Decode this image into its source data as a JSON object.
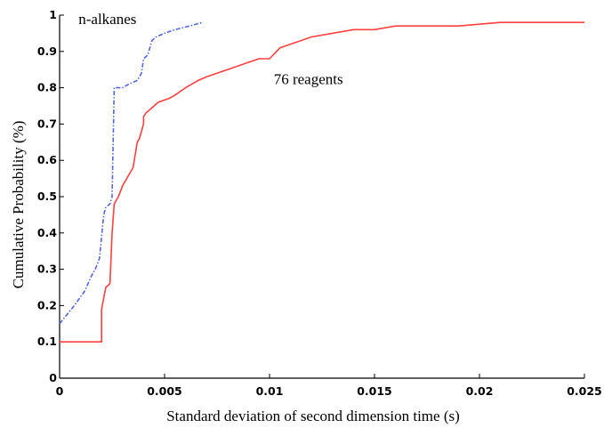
{
  "chart_data": {
    "type": "line",
    "title": "",
    "xlabel": "Standard deviation of second dimension time (s)",
    "ylabel": "Cumulative Probability (%)",
    "xlim": [
      0,
      0.025
    ],
    "ylim": [
      0,
      1
    ],
    "x_ticks": [
      "0",
      "0.005",
      "0.01",
      "0.015",
      "0.02",
      "0.025"
    ],
    "y_ticks": [
      "0",
      "0.1",
      "0.2",
      "0.3",
      "0.4",
      "0.5",
      "0.6",
      "0.7",
      "0.8",
      "0.9",
      "1"
    ],
    "grid": false,
    "legend": "none",
    "annotations": [
      {
        "text": "n-alkanes",
        "x": 0.0009,
        "y": 0.975
      },
      {
        "text": "76 reagents",
        "x": 0.0102,
        "y": 0.81
      }
    ],
    "series": [
      {
        "color": "#5566e0",
        "style": "dash-dot",
        "x": [
          0,
          0.0007,
          0.0012,
          0.0015,
          0.0017,
          0.0019,
          0.0021,
          0.0022,
          0.0024,
          0.0025,
          0.0026,
          0.0027,
          0.0028,
          0.003,
          0.0033,
          0.0037,
          0.0039,
          0.004,
          0.0042,
          0.0044,
          0.0046,
          0.005,
          0.0055,
          0.0062,
          0.0068
        ],
        "y": [
          0.15,
          0.2,
          0.24,
          0.28,
          0.3,
          0.33,
          0.45,
          0.47,
          0.48,
          0.5,
          0.8,
          0.8,
          0.8,
          0.8,
          0.81,
          0.82,
          0.84,
          0.88,
          0.89,
          0.93,
          0.94,
          0.95,
          0.96,
          0.97,
          0.98
        ]
      },
      {
        "color": "#ff4040",
        "style": "solid",
        "x": [
          0,
          0.002,
          0.002,
          0.0022,
          0.0024,
          0.0025,
          0.0026,
          0.0027,
          0.0028,
          0.003,
          0.0032,
          0.0035,
          0.0037,
          0.0038,
          0.004,
          0.004,
          0.0041,
          0.0043,
          0.0045,
          0.0047,
          0.0052,
          0.0055,
          0.006,
          0.0066,
          0.007,
          0.0075,
          0.008,
          0.0085,
          0.009,
          0.0095,
          0.01,
          0.0105,
          0.011,
          0.0115,
          0.012,
          0.013,
          0.014,
          0.015,
          0.016,
          0.017,
          0.019,
          0.021,
          0.023,
          0.025
        ],
        "y": [
          0.1,
          0.1,
          0.19,
          0.25,
          0.26,
          0.4,
          0.48,
          0.49,
          0.5,
          0.53,
          0.55,
          0.58,
          0.65,
          0.66,
          0.7,
          0.72,
          0.73,
          0.74,
          0.75,
          0.76,
          0.77,
          0.78,
          0.8,
          0.82,
          0.83,
          0.84,
          0.85,
          0.86,
          0.87,
          0.88,
          0.88,
          0.91,
          0.92,
          0.93,
          0.94,
          0.95,
          0.96,
          0.96,
          0.97,
          0.97,
          0.97,
          0.98,
          0.98,
          0.98
        ]
      }
    ]
  }
}
